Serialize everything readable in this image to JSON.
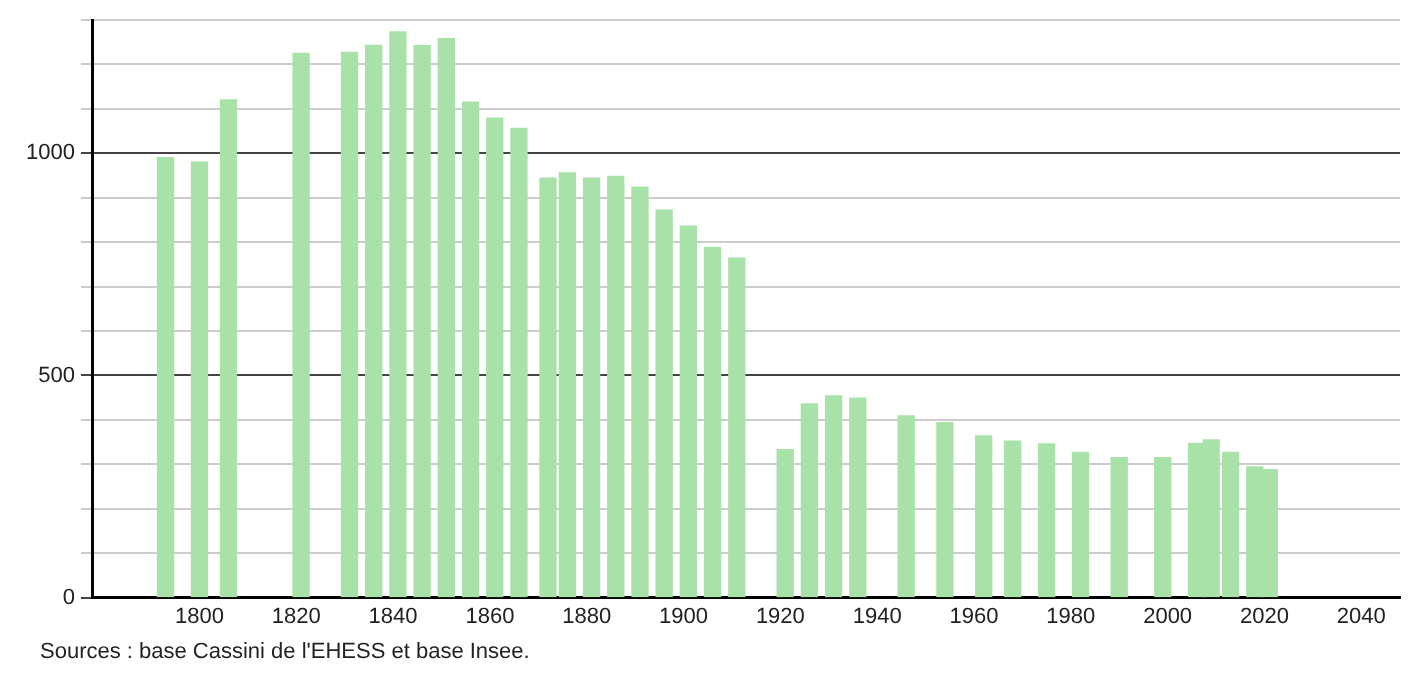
{
  "chart_data": {
    "type": "bar",
    "x": [
      1793,
      1800,
      1806,
      1821,
      1831,
      1836,
      1841,
      1846,
      1851,
      1856,
      1861,
      1866,
      1872,
      1876,
      1881,
      1886,
      1891,
      1896,
      1901,
      1906,
      1911,
      1921,
      1926,
      1931,
      1936,
      1946,
      1954,
      1962,
      1968,
      1975,
      1982,
      1990,
      1999,
      2006,
      2009,
      2013,
      2018,
      2021
    ],
    "values": [
      990,
      980,
      1120,
      1225,
      1227,
      1243,
      1273,
      1242,
      1258,
      1115,
      1079,
      1056,
      944,
      956,
      944,
      948,
      924,
      872,
      836,
      788,
      764,
      333,
      436,
      454,
      449,
      409,
      394,
      364,
      352,
      346,
      327,
      315,
      315,
      347,
      355,
      327,
      294,
      288
    ],
    "color": "#a8e2a8",
    "xlim": [
      1778,
      2048
    ],
    "xticks": [
      1800,
      1820,
      1840,
      1860,
      1880,
      1900,
      1920,
      1940,
      1960,
      1980,
      2000,
      2020,
      2040
    ],
    "ylim": [
      0,
      1300
    ],
    "yticks": [
      0,
      {
        "value": 100,
        "label": null
      },
      {
        "value": 200,
        "label": null
      },
      {
        "value": 300,
        "label": null
      },
      {
        "value": 400,
        "label": null
      },
      500,
      {
        "value": 600,
        "label": null
      },
      {
        "value": 700,
        "label": null
      },
      {
        "value": 800,
        "label": null
      },
      {
        "value": 900,
        "label": null
      },
      1000,
      {
        "value": 1100,
        "label": null
      },
      {
        "value": 1200,
        "label": null
      },
      {
        "value": 1300,
        "label": null
      }
    ],
    "grid": "y",
    "legend": false,
    "annotations": [
      "Sources : base Cassini de l'EHESS et base Insee."
    ]
  }
}
